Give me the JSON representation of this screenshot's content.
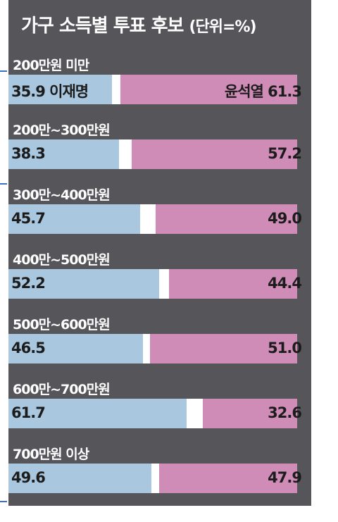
{
  "title": "가구 소득별 투표 후보",
  "unit": "(단위=%)",
  "chart_data": {
    "type": "bar",
    "title": "가구 소득별 투표 후보",
    "unit": "(단위=%)",
    "xlim": [
      0,
      100
    ],
    "categories": [
      "200만원 미만",
      "200만~300만원",
      "300만~400만원",
      "400만~500만원",
      "500만~600만원",
      "600만~700만원",
      "700만원 이상"
    ],
    "series": [
      {
        "name": "이재명",
        "color": "#a9c7df",
        "values": [
          35.9,
          38.3,
          45.7,
          52.2,
          46.5,
          61.7,
          49.6
        ]
      },
      {
        "name": "윤석열",
        "color": "#cf8cb6",
        "values": [
          61.3,
          57.2,
          49.0,
          44.4,
          51.0,
          32.6,
          47.9
        ]
      }
    ],
    "value_labels": {
      "lee": [
        "35.9 이재명",
        "38.3",
        "45.7",
        "52.2",
        "46.5",
        "61.7",
        "49.6"
      ],
      "yoon": [
        "윤석열 61.3",
        "57.2",
        "49.0",
        "44.4",
        "51.0",
        "32.6",
        "47.9"
      ]
    }
  }
}
